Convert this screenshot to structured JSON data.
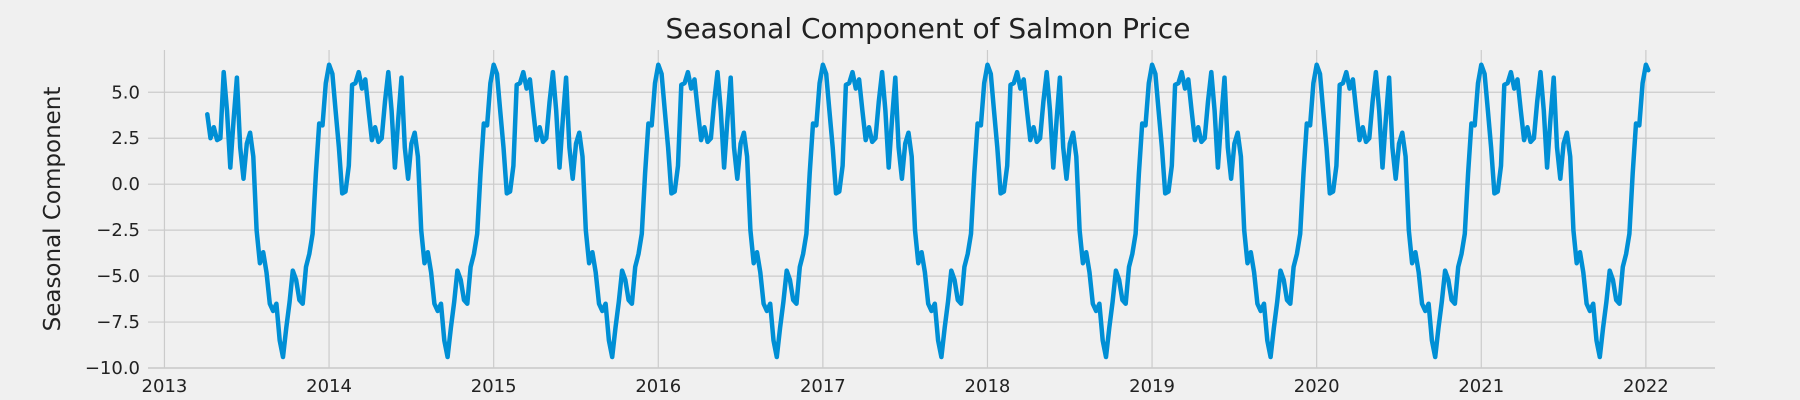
{
  "chart_data": {
    "type": "line",
    "title": "Seasonal Component of Salmon Price",
    "xlabel": "",
    "ylabel": "Seasonal Component",
    "xlim": [
      2012.9,
      2022.42
    ],
    "ylim": [
      -10.0,
      7.3
    ],
    "x_ticks": [
      {
        "value": 2013,
        "label": "2013"
      },
      {
        "value": 2014,
        "label": "2014"
      },
      {
        "value": 2015,
        "label": "2015"
      },
      {
        "value": 2016,
        "label": "2016"
      },
      {
        "value": 2017,
        "label": "2017"
      },
      {
        "value": 2018,
        "label": "2018"
      },
      {
        "value": 2019,
        "label": "2019"
      },
      {
        "value": 2020,
        "label": "2020"
      },
      {
        "value": 2021,
        "label": "2021"
      },
      {
        "value": 2022,
        "label": "2022"
      }
    ],
    "y_ticks": [
      {
        "value": 5.0,
        "label": "5.0"
      },
      {
        "value": 2.5,
        "label": "2.5"
      },
      {
        "value": 0.0,
        "label": "0.0"
      },
      {
        "value": -2.5,
        "label": "−2.5"
      },
      {
        "value": -5.0,
        "label": "−5.0"
      },
      {
        "value": -7.5,
        "label": "−7.5"
      },
      {
        "value": -10.0,
        "label": "−10.0"
      }
    ],
    "grid": true,
    "legend": "none",
    "line_color": "#008fd5",
    "series": [
      {
        "period": 1.0,
        "start": 2013.26,
        "end": 2022.0,
        "pattern_x": [
          0.0,
          0.02,
          0.04,
          0.06,
          0.08,
          0.1,
          0.12,
          0.14,
          0.16,
          0.18,
          0.2,
          0.22,
          0.24,
          0.26,
          0.28,
          0.3,
          0.32,
          0.34,
          0.36,
          0.38,
          0.4,
          0.42,
          0.44,
          0.46,
          0.48,
          0.5,
          0.52,
          0.54,
          0.56,
          0.58,
          0.6,
          0.62,
          0.64,
          0.66,
          0.68,
          0.7,
          0.72,
          0.74,
          0.76,
          0.78,
          0.8,
          0.82,
          0.84,
          0.86,
          0.88,
          0.9,
          0.92,
          0.94,
          0.96,
          0.98
        ],
        "pattern_y": [
          6.5,
          6.0,
          4.0,
          2.0,
          -0.5,
          -0.4,
          1.0,
          5.4,
          5.5,
          6.1,
          5.2,
          5.7,
          4.0,
          2.4,
          3.1,
          2.3,
          2.5,
          4.5,
          6.1,
          4.0,
          0.9,
          3.5,
          5.8,
          2.0,
          0.3,
          2.2,
          2.8,
          1.5,
          -2.5,
          -4.3,
          -3.7,
          -4.8,
          -6.5,
          -6.9,
          -6.5,
          -8.5,
          -9.4,
          -7.8,
          -6.4,
          -4.7,
          -5.2,
          -6.3,
          -6.5,
          -4.5,
          -3.8,
          -2.7,
          0.6,
          3.3,
          3.2,
          5.5
        ],
        "pre_start_points": [
          {
            "x": 2013.26,
            "y": 3.8
          },
          {
            "x": 2013.28,
            "y": 2.5
          },
          {
            "x": 2013.3,
            "y": 3.1
          },
          {
            "x": 2013.32,
            "y": 2.4
          },
          {
            "x": 2013.34,
            "y": 2.5
          }
        ],
        "end_value": 6.2
      }
    ]
  }
}
